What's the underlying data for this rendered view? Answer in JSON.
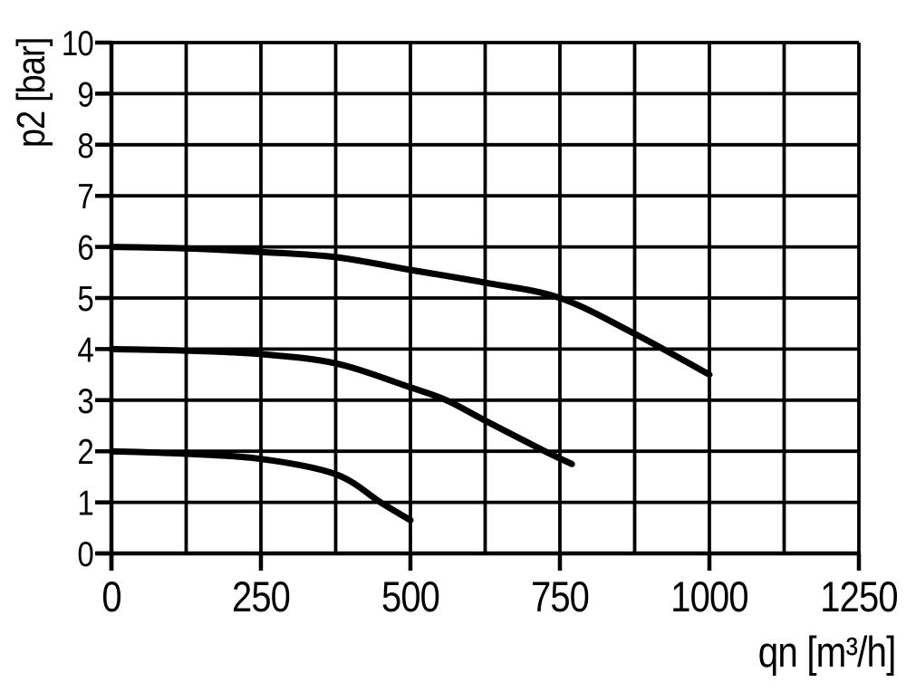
{
  "chart_data": {
    "type": "line",
    "title": "",
    "xlabel": "qn [m³/h]",
    "ylabel": "p2 [bar]",
    "xlim": [
      0,
      1250
    ],
    "ylim": [
      0,
      10
    ],
    "x_major_ticks": [
      0,
      250,
      500,
      750,
      1000,
      1250
    ],
    "x_grid_step": 125,
    "y_ticks": [
      0,
      1,
      2,
      3,
      4,
      5,
      6,
      7,
      8,
      9,
      10
    ],
    "y_grid_step": 1,
    "grid": true,
    "legend": "none",
    "line_color": "#000000",
    "grid_color": "#000000",
    "background_color": "#ffffff",
    "series": [
      {
        "name": "curve-start-6-bar",
        "start_p2_bar": 6.0,
        "points": [
          [
            0,
            6.0
          ],
          [
            125,
            5.97
          ],
          [
            250,
            5.9
          ],
          [
            375,
            5.8
          ],
          [
            500,
            5.55
          ],
          [
            625,
            5.3
          ],
          [
            750,
            5.0
          ],
          [
            875,
            4.3
          ],
          [
            1000,
            3.5
          ]
        ]
      },
      {
        "name": "curve-start-4-bar",
        "start_p2_bar": 4.0,
        "points": [
          [
            0,
            4.0
          ],
          [
            125,
            3.97
          ],
          [
            250,
            3.9
          ],
          [
            375,
            3.72
          ],
          [
            500,
            3.25
          ],
          [
            560,
            3.0
          ],
          [
            625,
            2.6
          ],
          [
            725,
            2.0
          ],
          [
            770,
            1.75
          ]
        ]
      },
      {
        "name": "curve-start-2-bar",
        "start_p2_bar": 2.0,
        "points": [
          [
            0,
            2.0
          ],
          [
            125,
            1.95
          ],
          [
            250,
            1.85
          ],
          [
            375,
            1.55
          ],
          [
            450,
            1.0
          ],
          [
            500,
            0.65
          ]
        ]
      }
    ]
  }
}
